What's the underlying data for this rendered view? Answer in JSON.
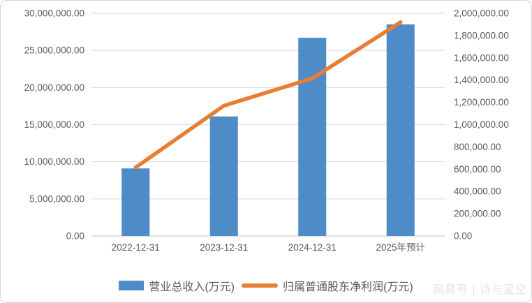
{
  "watermark": {
    "text": "网易号 | 诗与星空"
  },
  "colors": {
    "bar": "#4E8CC7",
    "line": "#E87E35",
    "grid": "#D9D9D9",
    "axis_line": "#C9C9C9",
    "axis_text": "#595959",
    "watermark_text": "#E3E3E0"
  },
  "chart_data": {
    "type": "bar",
    "subtype": "combo bar+line, dual y-axis",
    "title": "",
    "categories": [
      "2022-12-31",
      "2023-12-31",
      "2024-12-31",
      "2025年预计"
    ],
    "series": [
      {
        "name": "营业总收入(万元)",
        "type": "bar",
        "y_axis": "left",
        "color": "#4E8CC7",
        "values": [
          9100000,
          16100000,
          26700000,
          28500000
        ]
      },
      {
        "name": "归属普通股东净利润(万元)",
        "type": "line",
        "y_axis": "right",
        "color": "#E87E35",
        "values": [
          615000,
          1170000,
          1415000,
          1920000
        ]
      }
    ],
    "left_axis": {
      "min": 0,
      "max": 30000000,
      "step": 5000000,
      "tick_labels": [
        "0.00",
        "5,000,000.00",
        "10,000,000.00",
        "15,000,000.00",
        "20,000,000.00",
        "25,000,000.00",
        "30,000,000.00"
      ]
    },
    "right_axis": {
      "min": 0,
      "max": 2000000,
      "step": 200000,
      "tick_labels": [
        "0.00",
        "200,000.00",
        "400,000.00",
        "600,000.00",
        "800,000.00",
        "1,000,000.00",
        "1,200,000.00",
        "1,400,000.00",
        "1,600,000.00",
        "1,800,000.00",
        "2,000,000.00"
      ]
    },
    "grid": "horizontal, at left-axis ticks",
    "legend_position": "bottom"
  }
}
